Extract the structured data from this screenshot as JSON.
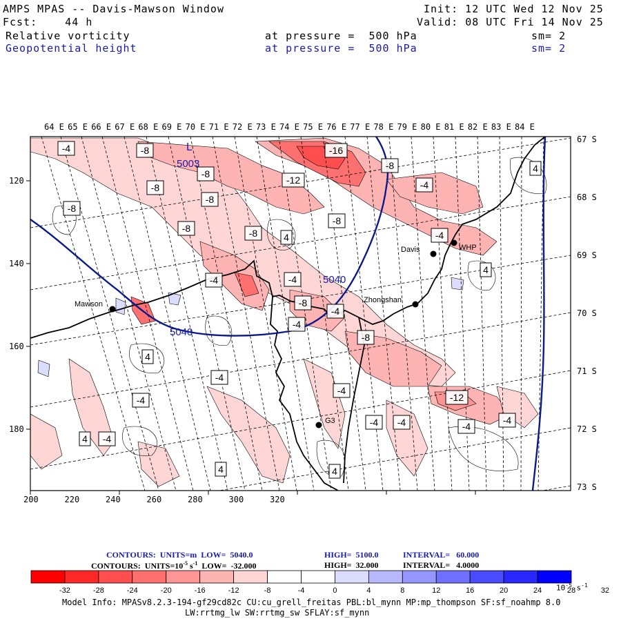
{
  "header": {
    "line1_left": "AMPS MPAS -- Davis-Mawson Window",
    "line1_right": "Init: 12 UTC Wed 12 Nov 25",
    "line2_left": "Fcst:    44 h",
    "line2_right": "Valid: 08 UTC Fri 14 Nov 25",
    "var1_name": "Relative vorticity",
    "var1_level": "at pressure =  500 hPa",
    "var1_sm": "sm= 2",
    "var2_name": "Geopotential height",
    "var2_level": "at pressure =  500 hPa",
    "var2_sm": "sm= 2"
  },
  "map": {
    "lon_labels": [
      "64 E",
      "65 E",
      "66 E",
      "67 E",
      "68 E",
      "69 E",
      "70 E",
      "71 E",
      "72 E",
      "73 E",
      "74 E",
      "75 E",
      "76 E",
      "77 E",
      "78 E",
      "79 E",
      "80 E",
      "81 E",
      "82 E",
      "83 E",
      "84 E"
    ],
    "lat_labels": [
      "67 S",
      "68 S",
      "69 S",
      "70 S",
      "71 S",
      "72 S",
      "73 S"
    ],
    "x_ticks": [
      "200",
      "220",
      "240",
      "260",
      "280",
      "300",
      "320"
    ],
    "y_ticks": [
      "120",
      "140",
      "160",
      "180"
    ],
    "stations": [
      {
        "name": "Mawson"
      },
      {
        "name": "Davis"
      },
      {
        "name": "WHP"
      },
      {
        "name": "Zhongshan"
      },
      {
        "name": "G3"
      }
    ],
    "low_marker": "L",
    "low_value": "5003",
    "height_labels": [
      "5040",
      "5040"
    ],
    "vort_labels": [
      "-4",
      "-8",
      "-8",
      "-16",
      "-8",
      "-12",
      "-8",
      "-8",
      "-4",
      "-8",
      "-8",
      "-8",
      "-8",
      "4",
      "-4",
      "-4",
      "-4",
      "-8",
      "-4",
      "-4",
      "-8",
      "4",
      "4",
      "-4",
      "-4",
      "-12",
      "-4",
      "-4",
      "-4",
      "-4",
      "4",
      "-4",
      "4",
      "-4",
      "4",
      "4"
    ]
  },
  "colorbar_info": {
    "line1_label": "CONTOURS:  UNITS=m  LOW=  5040.0",
    "line1_high": "HIGH=  5100.0",
    "line1_interval": "INTERVAL=   60.000",
    "line2_label": "CONTOURS:  UNITS=10",
    "line2_exp": "-5",
    "line2_units_end": " s",
    "line2_units_exp": "-1",
    "line2_low": "  LOW=  -32.000",
    "line2_high": "HIGH=  32.000",
    "line2_interval": "INTERVAL=   4.0000"
  },
  "colorbar": {
    "colors": [
      "#ff0000",
      "#ff2828",
      "#ff4e4e",
      "#ff7070",
      "#ff9494",
      "#ffb4b4",
      "#ffd6d6",
      "#ffffff",
      "#ffffff",
      "#dcdcff",
      "#b8b8ff",
      "#9696ff",
      "#7070ff",
      "#4c4cff",
      "#2828ff",
      "#0000ff"
    ],
    "tick_labels": [
      "-32",
      "-28",
      "-24",
      "-20",
      "-16",
      "-12",
      "-8",
      "-4",
      "0",
      "4",
      "8",
      "12",
      "16",
      "20",
      "24",
      "28",
      "32"
    ],
    "units": "10",
    "units_exp": "-5",
    "units_s": "s",
    "units_s_exp": "-1"
  },
  "footer": {
    "line1": "Model Info: MPASv8.2.3-194-gf29cd82c CU:cu_grell_freitas PBL:bl_mynn MP:mp_thompson SF:sf_noahmp 8.0",
    "line2": "LW:rrtmg_lw SW:rrtmg_sw SFLAY:sf_mynn"
  }
}
